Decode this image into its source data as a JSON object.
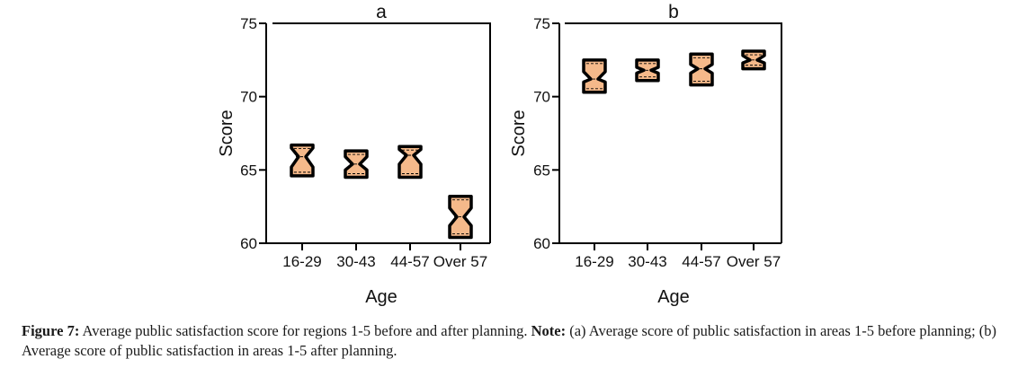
{
  "chart_data": [
    {
      "type": "box",
      "title": "a",
      "xlabel": "Age",
      "ylabel": "Score",
      "ylim": [
        60,
        75
      ],
      "yticks": [
        60,
        65,
        70,
        75
      ],
      "categories": [
        "16-29",
        "30-43",
        "44-57",
        "Over 57"
      ],
      "boxes": [
        {
          "category": "16-29",
          "q1": 64.6,
          "median": 65.9,
          "q3": 66.7,
          "notch_low": 65.2,
          "notch_high": 66.5
        },
        {
          "category": "30-43",
          "q1": 64.5,
          "median": 65.4,
          "q3": 66.3,
          "notch_low": 65.0,
          "notch_high": 65.9
        },
        {
          "category": "44-57",
          "q1": 64.5,
          "median": 66.0,
          "q3": 66.6,
          "notch_low": 65.4,
          "notch_high": 66.4
        },
        {
          "category": "Over 57",
          "q1": 60.4,
          "median": 61.8,
          "q3": 63.2,
          "notch_low": 61.2,
          "notch_high": 62.4
        }
      ],
      "fill": "#f5b98a",
      "stroke": "#000000"
    },
    {
      "type": "box",
      "title": "b",
      "xlabel": "Age",
      "ylabel": "Score",
      "ylim": [
        60,
        75
      ],
      "yticks": [
        60,
        65,
        70,
        75
      ],
      "categories": [
        "16-29",
        "30-43",
        "44-57",
        "Over 57"
      ],
      "boxes": [
        {
          "category": "16-29",
          "q1": 70.3,
          "median": 71.2,
          "q3": 72.5,
          "notch_low": 71.0,
          "notch_high": 71.7
        },
        {
          "category": "30-43",
          "q1": 71.1,
          "median": 71.8,
          "q3": 72.5,
          "notch_low": 71.6,
          "notch_high": 72.0
        },
        {
          "category": "44-57",
          "q1": 70.8,
          "median": 71.9,
          "q3": 72.9,
          "notch_low": 71.6,
          "notch_high": 72.2
        },
        {
          "category": "Over 57",
          "q1": 71.9,
          "median": 72.5,
          "q3": 73.1,
          "notch_low": 72.3,
          "notch_high": 72.8
        }
      ],
      "fill": "#f5b98a",
      "stroke": "#000000"
    }
  ],
  "caption": {
    "label": "Figure 7:",
    "text": " Average public satisfaction score for regions 1-5 before and after planning. ",
    "note_label": "Note:",
    "note_text": " (a) Average score of public satisfaction in areas 1-5 before planning; (b) Average score of public satisfaction in areas 1-5 after planning."
  }
}
